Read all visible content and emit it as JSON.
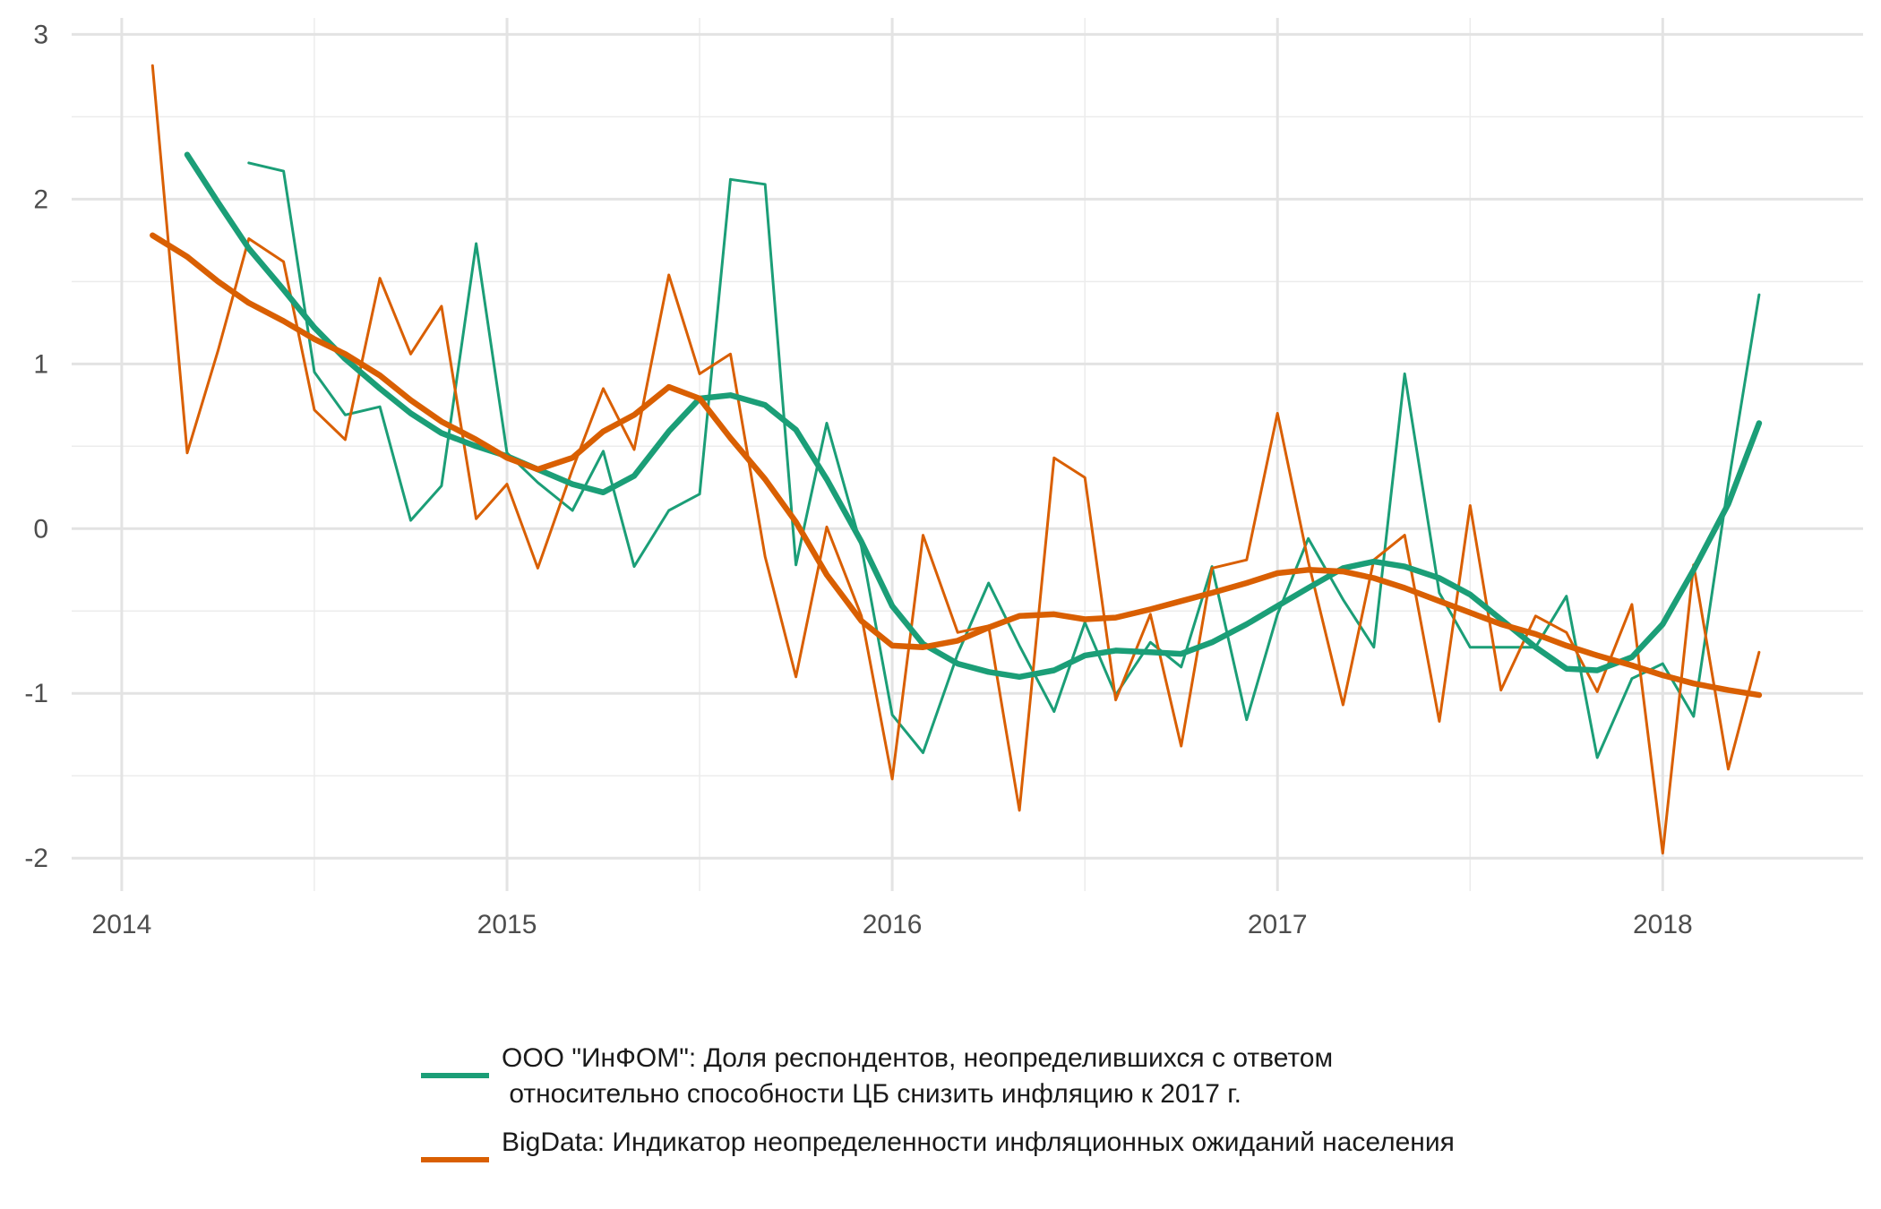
{
  "chart_data": {
    "type": "line",
    "title": "",
    "xlabel": "",
    "ylabel": "",
    "xlim": [
      2013.87,
      2018.52
    ],
    "ylim": [
      -2.2,
      3.1
    ],
    "x_ticks": [
      2014,
      2015,
      2016,
      2017,
      2018
    ],
    "x_tick_labels": [
      "2014",
      "2015",
      "2016",
      "2017",
      "2018"
    ],
    "y_ticks": [
      -2,
      -1,
      0,
      1,
      2,
      3
    ],
    "y_tick_labels": [
      "-2",
      "-1",
      "0",
      "1",
      "2",
      "3"
    ],
    "grid": true,
    "legend_position": "bottom",
    "series": [
      {
        "name": "ООО \"ИнФОМ\": Доля респондентов, неопределившихся с ответом\n относительно способности ЦБ снизить инфляцию к 2017 г.",
        "color": "#1b9e77",
        "raw": {
          "x": [
            2014.17,
            null,
            2014.33,
            2014.42,
            2014.5,
            2014.58,
            2014.67,
            2014.75,
            2014.83,
            2014.92,
            2015.0,
            2015.08,
            2015.17,
            2015.25,
            2015.33,
            2015.42,
            2015.5,
            2015.58,
            2015.67,
            2015.75,
            2015.83,
            2015.92,
            2016.0,
            2016.08,
            2016.17,
            2016.25,
            2016.33,
            2016.42,
            2016.5,
            2016.58,
            2016.67,
            2016.75,
            2016.83,
            2016.92,
            2017.0,
            2017.08,
            2017.17,
            2017.25,
            2017.33,
            2017.42,
            2017.5,
            2017.58,
            2017.67,
            2017.75,
            2017.83,
            2017.92,
            2018.0,
            2018.08,
            2018.17,
            2018.25
          ],
          "y": [
            2.27,
            null,
            2.22,
            2.17,
            0.95,
            0.69,
            0.74,
            0.05,
            0.26,
            1.73,
            0.46,
            0.28,
            0.11,
            0.47,
            -0.23,
            0.11,
            0.21,
            2.12,
            2.09,
            -0.22,
            0.64,
            -0.11,
            -1.13,
            -1.36,
            -0.76,
            -0.33,
            -0.71,
            -1.11,
            -0.57,
            -1.01,
            -0.69,
            -0.84,
            -0.23,
            -1.16,
            -0.52,
            -0.06,
            -0.43,
            -0.72,
            0.94,
            -0.39,
            -0.72,
            -0.72,
            -0.72,
            -0.41,
            -1.39,
            -0.91,
            -0.82,
            -1.14,
            0.27,
            1.42
          ]
        },
        "trend": {
          "x": [
            2014.17,
            2014.25,
            2014.33,
            2014.42,
            2014.5,
            2014.58,
            2014.67,
            2014.75,
            2014.83,
            2014.92,
            2015.0,
            2015.08,
            2015.17,
            2015.25,
            2015.33,
            2015.42,
            2015.5,
            2015.58,
            2015.67,
            2015.75,
            2015.83,
            2015.92,
            2016.0,
            2016.08,
            2016.17,
            2016.25,
            2016.33,
            2016.42,
            2016.5,
            2016.58,
            2016.67,
            2016.75,
            2016.83,
            2016.92,
            2017.0,
            2017.08,
            2017.17,
            2017.25,
            2017.33,
            2017.42,
            2017.5,
            2017.58,
            2017.67,
            2017.75,
            2017.83,
            2017.92,
            2018.0,
            2018.08,
            2018.17,
            2018.25
          ],
          "y": [
            2.27,
            1.98,
            1.7,
            1.45,
            1.22,
            1.03,
            0.85,
            0.7,
            0.58,
            0.5,
            0.44,
            0.36,
            0.27,
            0.22,
            0.32,
            0.59,
            0.79,
            0.81,
            0.75,
            0.6,
            0.3,
            -0.08,
            -0.47,
            -0.7,
            -0.82,
            -0.87,
            -0.9,
            -0.86,
            -0.77,
            -0.74,
            -0.75,
            -0.76,
            -0.69,
            -0.58,
            -0.47,
            -0.36,
            -0.24,
            -0.2,
            -0.23,
            -0.3,
            -0.4,
            -0.55,
            -0.72,
            -0.85,
            -0.86,
            -0.78,
            -0.58,
            -0.25,
            0.15,
            0.64
          ]
        }
      },
      {
        "name": "BigData: Индикатор неопределенности инфляционных ожиданий населения",
        "color": "#d95f02",
        "raw": {
          "x": [
            2014.08,
            2014.17,
            2014.25,
            2014.33,
            2014.42,
            2014.5,
            2014.58,
            2014.67,
            2014.75,
            2014.83,
            2014.92,
            2015.0,
            2015.08,
            2015.17,
            2015.25,
            2015.33,
            2015.42,
            2015.5,
            2015.58,
            2015.67,
            2015.75,
            2015.83,
            2015.92,
            2016.0,
            2016.08,
            2016.17,
            2016.25,
            2016.33,
            2016.42,
            2016.5,
            2016.58,
            2016.67,
            2016.75,
            2016.83,
            2016.92,
            2017.0,
            2017.08,
            2017.17,
            2017.25,
            2017.33,
            2017.42,
            2017.5,
            2017.58,
            2017.67,
            2017.75,
            2017.83,
            2017.92,
            2018.0,
            2018.08,
            2018.17,
            2018.25
          ],
          "y": [
            2.81,
            0.46,
            1.08,
            1.76,
            1.62,
            0.72,
            0.54,
            1.52,
            1.06,
            1.35,
            0.06,
            0.27,
            -0.24,
            0.36,
            0.85,
            0.48,
            1.54,
            0.94,
            1.06,
            -0.17,
            -0.9,
            0.01,
            -0.53,
            -1.52,
            -0.04,
            -0.63,
            -0.59,
            -1.71,
            0.43,
            0.31,
            -1.04,
            -0.52,
            -1.32,
            -0.24,
            -0.19,
            0.7,
            -0.2,
            -1.07,
            -0.19,
            -0.04,
            -1.17,
            0.14,
            -0.98,
            -0.53,
            -0.63,
            -0.99,
            -0.46,
            -1.97,
            -0.22,
            -1.46,
            -0.75
          ]
        },
        "trend": {
          "x": [
            2014.08,
            2014.17,
            2014.25,
            2014.33,
            2014.42,
            2014.5,
            2014.58,
            2014.67,
            2014.75,
            2014.83,
            2014.92,
            2015.0,
            2015.08,
            2015.17,
            2015.25,
            2015.33,
            2015.42,
            2015.5,
            2015.58,
            2015.67,
            2015.75,
            2015.83,
            2015.92,
            2016.0,
            2016.08,
            2016.17,
            2016.25,
            2016.33,
            2016.42,
            2016.5,
            2016.58,
            2016.67,
            2016.75,
            2016.83,
            2016.92,
            2017.0,
            2017.08,
            2017.17,
            2017.25,
            2017.33,
            2017.42,
            2017.5,
            2017.58,
            2017.67,
            2017.75,
            2017.83,
            2017.92,
            2018.0,
            2018.08,
            2018.17,
            2018.25
          ],
          "y": [
            1.78,
            1.65,
            1.5,
            1.37,
            1.26,
            1.15,
            1.06,
            0.93,
            0.78,
            0.65,
            0.54,
            0.43,
            0.36,
            0.43,
            0.59,
            0.69,
            0.86,
            0.79,
            0.55,
            0.3,
            0.04,
            -0.28,
            -0.56,
            -0.71,
            -0.72,
            -0.68,
            -0.6,
            -0.53,
            -0.52,
            -0.55,
            -0.54,
            -0.49,
            -0.44,
            -0.39,
            -0.33,
            -0.27,
            -0.25,
            -0.26,
            -0.3,
            -0.36,
            -0.44,
            -0.51,
            -0.58,
            -0.64,
            -0.71,
            -0.77,
            -0.83,
            -0.89,
            -0.94,
            -0.98,
            -1.01
          ]
        }
      }
    ]
  }
}
